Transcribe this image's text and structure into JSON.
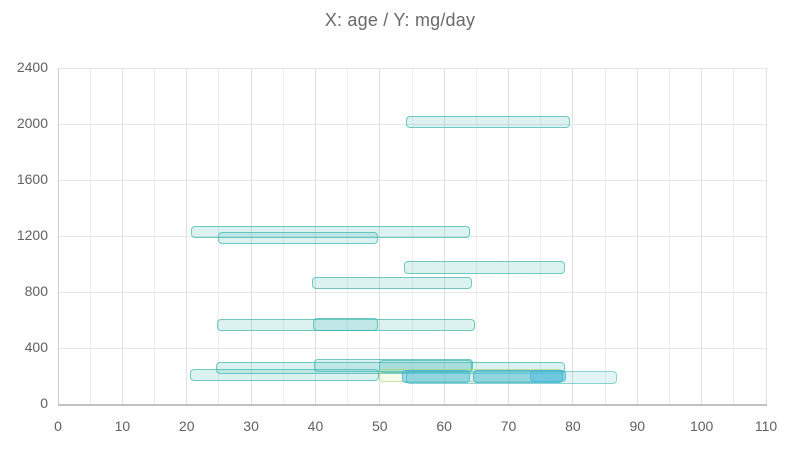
{
  "chart_data": {
    "type": "bar",
    "subtype": "horizontal-range-bars",
    "title": "X: age / Y: mg/day",
    "xlabel": "age",
    "ylabel": "mg/day",
    "xlim": [
      0,
      110
    ],
    "ylim": [
      0,
      2400
    ],
    "x_tick_labels": [
      0,
      10,
      20,
      30,
      40,
      50,
      60,
      70,
      80,
      90,
      100,
      110
    ],
    "x_minor_grid_step": 5,
    "y_tick_labels": [
      0,
      400,
      800,
      1200,
      1600,
      2000,
      2400
    ],
    "grid": "on",
    "legend": "none",
    "bar_thickness_units": 90,
    "series_styles": {
      "teal": {
        "fill": "rgba(77,190,186,0.20)",
        "stroke": "rgba(50,178,172,0.65)"
      },
      "teal_light": {
        "fill": "rgba(77,190,186,0.16)",
        "stroke": "rgba(50,178,172,0.50)"
      },
      "blue": {
        "fill": "rgba(85,190,228,0.55)",
        "stroke": "rgba(70,178,216,0.70)"
      },
      "green": {
        "fill": "rgba(195,225,135,0.14)",
        "stroke": "rgba(175,205,105,0.60)"
      }
    },
    "bars": [
      {
        "x_start": 54.0,
        "x_end": 79.5,
        "y": 2015,
        "series": "teal"
      },
      {
        "x_start": 20.6,
        "x_end": 64.0,
        "y": 1228,
        "series": "teal"
      },
      {
        "x_start": 24.8,
        "x_end": 49.7,
        "y": 1186,
        "series": "teal"
      },
      {
        "x_start": 53.7,
        "x_end": 78.7,
        "y": 973,
        "series": "teal"
      },
      {
        "x_start": 39.4,
        "x_end": 64.4,
        "y": 864,
        "series": "teal"
      },
      {
        "x_start": 24.7,
        "x_end": 64.8,
        "y": 563,
        "series": "teal"
      },
      {
        "x_start": 39.6,
        "x_end": 49.7,
        "y": 567,
        "series": "teal"
      },
      {
        "x_start": 24.6,
        "x_end": 78.7,
        "y": 258,
        "series": "teal"
      },
      {
        "x_start": 39.7,
        "x_end": 64.5,
        "y": 276,
        "series": "teal"
      },
      {
        "x_start": 49.8,
        "x_end": 64.3,
        "y": 266,
        "series": "teal"
      },
      {
        "x_start": 20.5,
        "x_end": 49.9,
        "y": 207,
        "series": "teal"
      },
      {
        "x_start": 49.8,
        "x_end": 78.5,
        "y": 203,
        "series": "green"
      },
      {
        "x_start": 53.4,
        "x_end": 64.0,
        "y": 196,
        "series": "blue"
      },
      {
        "x_start": 64.5,
        "x_end": 78.5,
        "y": 195,
        "series": "blue"
      },
      {
        "x_start": 73.3,
        "x_end": 79.0,
        "y": 200,
        "series": "blue"
      },
      {
        "x_start": 54.0,
        "x_end": 86.8,
        "y": 191,
        "series": "teal_light"
      }
    ],
    "grid_colors": {
      "major_v": "#e0e0e0",
      "minor_v": "#eeeeee",
      "major_h": "#e6e6e6"
    }
  }
}
